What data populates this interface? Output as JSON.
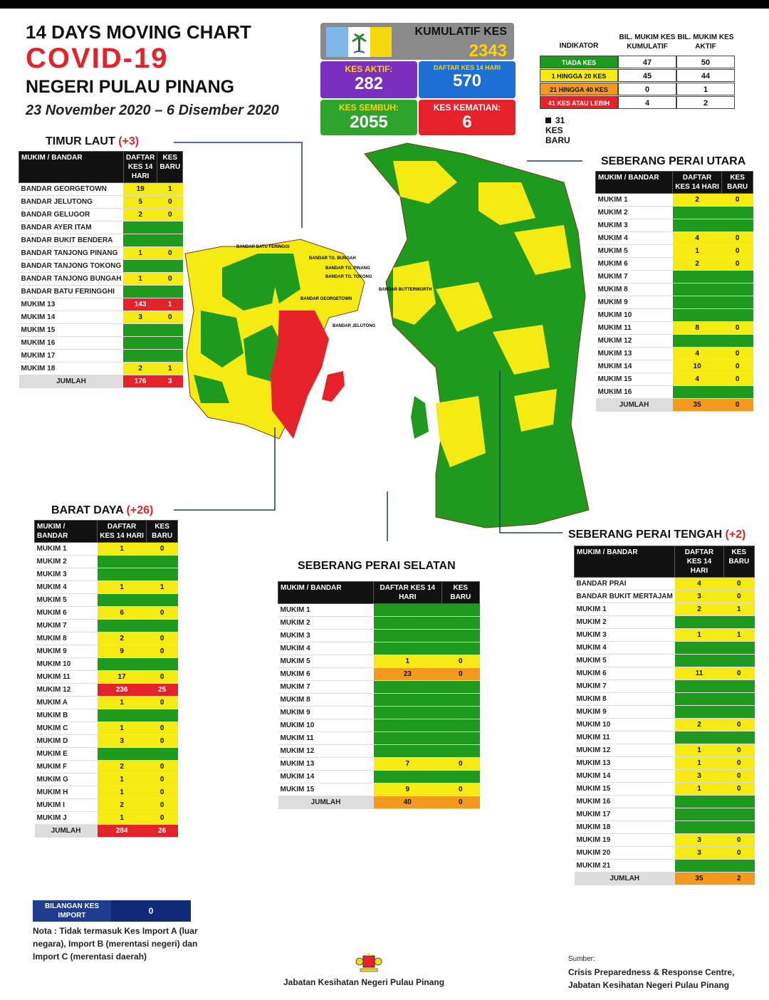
{
  "header": {
    "line1": "14  DAYS MOVING CHART",
    "line2": "COVID-19",
    "line3": "NEGERI PULAU PINANG",
    "line4": "23 November 2020 – 6 Disember 2020"
  },
  "summary": {
    "kumulatif_label": "KUMULATIF KES",
    "kumulatif_value": "2343",
    "aktif_label": "KES AKTIF:",
    "aktif_value": "282",
    "daftar_label": "DAFTAR KES 14 HARI",
    "daftar_value": "570",
    "sembuh_label": "KES SEMBUH:",
    "sembuh_value": "2055",
    "kematian_label": "KES KEMATIAN:",
    "kematian_value": "6",
    "colors": {
      "aktif": "#7b2fbf",
      "daftar": "#1d6fd6",
      "sembuh": "#2da52d",
      "kematian": "#e5222a",
      "kumulatif": "#8a8a8a"
    }
  },
  "indicator": {
    "h0": "INDIKATOR",
    "h1": "BIL. MUKIM KES KUMULATIF",
    "h2": "BIL. MUKIM KES AKTIF",
    "rows": [
      {
        "label": "TIADA KES",
        "kumulatif": "47",
        "aktif": "50",
        "color": "#1e9a1e"
      },
      {
        "label": "1 HINGGA 20 KES",
        "kumulatif": "45",
        "aktif": "44",
        "color": "#f6ea13"
      },
      {
        "label": "21 HINGGA 40 KES",
        "kumulatif": "0",
        "aktif": "1",
        "color": "#f39a1e"
      },
      {
        "label": "41 KES ATAU LEBIH",
        "kumulatif": "4",
        "aktif": "2",
        "color": "#e5222a"
      }
    ],
    "note": "31 KES BARU"
  },
  "timur_laut": {
    "title": "TIMUR LAUT",
    "plus": "(+3)",
    "h1": "MUKIM / BANDAR",
    "h2": "DAFTAR KES 14 HARI",
    "h3": "KES BARU",
    "rows": [
      [
        "BANDAR GEORGETOWN",
        "19",
        "1",
        "y"
      ],
      [
        "BANDAR JELUTONG",
        "5",
        "0",
        "y"
      ],
      [
        "BANDAR GELUGOR",
        "2",
        "0",
        "y"
      ],
      [
        "BANDAR AYER ITAM",
        "0",
        "0",
        "g"
      ],
      [
        "BANDAR BUKIT BENDERA",
        "0",
        "0",
        "g"
      ],
      [
        "BANDAR TANJONG PINANG",
        "1",
        "0",
        "y"
      ],
      [
        "BANDAR TANJONG TOKONG",
        "0",
        "0",
        "g"
      ],
      [
        "BANDAR TANJONG BUNGAH",
        "1",
        "0",
        "y"
      ],
      [
        "BANDAR BATU FERINGGHI",
        "0",
        "0",
        "g"
      ],
      [
        "MUKIM 13",
        "143",
        "1",
        "r"
      ],
      [
        "MUKIM 14",
        "3",
        "0",
        "y"
      ],
      [
        "MUKIM 15",
        "0",
        "0",
        "g"
      ],
      [
        "MUKIM 16",
        "0",
        "0",
        "g"
      ],
      [
        "MUKIM 17",
        "0",
        "0",
        "g"
      ],
      [
        "MUKIM 18",
        "2",
        "1",
        "y"
      ]
    ],
    "total": [
      "JUMLAH",
      "176",
      "3",
      "r"
    ]
  },
  "barat_daya": {
    "title": "BARAT DAYA",
    "plus": "(+26)",
    "h1": "MUKIM / BANDAR",
    "h2": "DAFTAR KES 14 HARI",
    "h3": "KES BARU",
    "rows": [
      [
        "MUKIM 1",
        "1",
        "0",
        "y"
      ],
      [
        "MUKIM 2",
        "0",
        "0",
        "g"
      ],
      [
        "MUKIM 3",
        "0",
        "0",
        "g"
      ],
      [
        "MUKIM 4",
        "1",
        "1",
        "y"
      ],
      [
        "MUKIM 5",
        "0",
        "0",
        "g"
      ],
      [
        "MUKIM 6",
        "6",
        "0",
        "y"
      ],
      [
        "MUKIM 7",
        "0",
        "0",
        "g"
      ],
      [
        "MUKIM 8",
        "2",
        "0",
        "y"
      ],
      [
        "MUKIM 9",
        "9",
        "0",
        "y"
      ],
      [
        "MUKIM 10",
        "0",
        "0",
        "g"
      ],
      [
        "MUKIM 11",
        "17",
        "0",
        "y"
      ],
      [
        "MUKIM 12",
        "236",
        "25",
        "r"
      ],
      [
        "MUKIM A",
        "1",
        "0",
        "y"
      ],
      [
        "MUKIM B",
        "0",
        "0",
        "g"
      ],
      [
        "MUKIM C",
        "1",
        "0",
        "y"
      ],
      [
        "MUKIM D",
        "3",
        "0",
        "y"
      ],
      [
        "MUKIM E",
        "0",
        "0",
        "g"
      ],
      [
        "MUKIM F",
        "2",
        "0",
        "y"
      ],
      [
        "MUKIM G",
        "1",
        "0",
        "y"
      ],
      [
        "MUKIM H",
        "1",
        "0",
        "y"
      ],
      [
        "MUKIM I",
        "2",
        "0",
        "y"
      ],
      [
        "MUKIM J",
        "1",
        "0",
        "y"
      ]
    ],
    "total": [
      "JUMLAH",
      "284",
      "26",
      "r"
    ]
  },
  "spu": {
    "title": "SEBERANG PERAI UTARA",
    "h1": "MUKIM / BANDAR",
    "h2": "DAFTAR KES 14 HARI",
    "h3": "KES BARU",
    "rows": [
      [
        "MUKIM 1",
        "2",
        "0",
        "y"
      ],
      [
        "MUKIM 2",
        "0",
        "0",
        "g"
      ],
      [
        "MUKIM 3",
        "0",
        "0",
        "g"
      ],
      [
        "MUKIM 4",
        "4",
        "0",
        "y"
      ],
      [
        "MUKIM 5",
        "1",
        "0",
        "y"
      ],
      [
        "MUKIM 6",
        "2",
        "0",
        "y"
      ],
      [
        "MUKIM 7",
        "0",
        "0",
        "g"
      ],
      [
        "MUKIM 8",
        "0",
        "0",
        "g"
      ],
      [
        "MUKIM 9",
        "0",
        "0",
        "g"
      ],
      [
        "MUKIM 10",
        "0",
        "0",
        "g"
      ],
      [
        "MUKIM 11",
        "8",
        "0",
        "y"
      ],
      [
        "MUKIM 12",
        "0",
        "0",
        "g"
      ],
      [
        "MUKIM 13",
        "4",
        "0",
        "y"
      ],
      [
        "MUKIM 14",
        "10",
        "0",
        "y"
      ],
      [
        "MUKIM 15",
        "4",
        "0",
        "y"
      ],
      [
        "MUKIM 16",
        "0",
        "0",
        "g"
      ]
    ],
    "total": [
      "JUMLAH",
      "35",
      "0",
      "o"
    ]
  },
  "sps": {
    "title": "SEBERANG PERAI SELATAN",
    "h1": "MUKIM / BANDAR",
    "h2": "DAFTAR KES 14 HARI",
    "h3": "KES BARU",
    "rows": [
      [
        "MUKIM 1",
        "0",
        "0",
        "g"
      ],
      [
        "MUKIM 2",
        "0",
        "0",
        "g"
      ],
      [
        "MUKIM 3",
        "0",
        "0",
        "g"
      ],
      [
        "MUKIM 4",
        "0",
        "0",
        "g"
      ],
      [
        "MUKIM 5",
        "1",
        "0",
        "y"
      ],
      [
        "MUKIM 6",
        "23",
        "0",
        "o"
      ],
      [
        "MUKIM 7",
        "0",
        "0",
        "g"
      ],
      [
        "MUKIM 8",
        "0",
        "0",
        "g"
      ],
      [
        "MUKIM 9",
        "0",
        "0",
        "g"
      ],
      [
        "MUKIM 10",
        "0",
        "0",
        "g"
      ],
      [
        "MUKIM 11",
        "0",
        "0",
        "g"
      ],
      [
        "MUKIM 12",
        "0",
        "0",
        "g"
      ],
      [
        "MUKIM 13",
        "7",
        "0",
        "y"
      ],
      [
        "MUKIM 14",
        "0",
        "0",
        "g"
      ],
      [
        "MUKIM 15",
        "9",
        "0",
        "y"
      ]
    ],
    "total": [
      "JUMLAH",
      "40",
      "0",
      "o"
    ]
  },
  "spt": {
    "title": "SEBERANG PERAI TENGAH",
    "plus": "(+2)",
    "h1": "MUKIM / BANDAR",
    "h2": "DAFTAR KES 14 HARI",
    "h3": "KES BARU",
    "rows": [
      [
        "BANDAR PRAI",
        "4",
        "0",
        "y"
      ],
      [
        "BANDAR BUKIT MERTAJAM",
        "3",
        "0",
        "y"
      ],
      [
        "MUKIM 1",
        "2",
        "1",
        "y"
      ],
      [
        "MUKIM 2",
        "0",
        "0",
        "g"
      ],
      [
        "MUKIM 3",
        "1",
        "1",
        "y"
      ],
      [
        "MUKIM 4",
        "0",
        "0",
        "g"
      ],
      [
        "MUKIM 5",
        "0",
        "0",
        "g"
      ],
      [
        "MUKIM 6",
        "11",
        "0",
        "y"
      ],
      [
        "MUKIM 7",
        "0",
        "0",
        "g"
      ],
      [
        "MUKIM 8",
        "0",
        "0",
        "g"
      ],
      [
        "MUKIM 9",
        "0",
        "0",
        "g"
      ],
      [
        "MUKIM 10",
        "2",
        "0",
        "y"
      ],
      [
        "MUKIM 11",
        "0",
        "0",
        "g"
      ],
      [
        "MUKIM 12",
        "1",
        "0",
        "y"
      ],
      [
        "MUKIM 13",
        "1",
        "0",
        "y"
      ],
      [
        "MUKIM 14",
        "3",
        "0",
        "y"
      ],
      [
        "MUKIM 15",
        "1",
        "0",
        "y"
      ],
      [
        "MUKIM 16",
        "0",
        "0",
        "g"
      ],
      [
        "MUKIM 17",
        "0",
        "0",
        "g"
      ],
      [
        "MUKIM 18",
        "0",
        "0",
        "g"
      ],
      [
        "MUKIM 19",
        "3",
        "0",
        "y"
      ],
      [
        "MUKIM 20",
        "3",
        "0",
        "y"
      ],
      [
        "MUKIM 21",
        "0",
        "0",
        "g"
      ]
    ],
    "total": [
      "JUMLAH",
      "35",
      "2",
      "o"
    ]
  },
  "map_labels": {
    "batu_feringgi": "BANDAR BATU FERINGGI",
    "tg_bungah": "BANDAR TG. BUNGAH",
    "tg_pinang": "BANDAR TG. PINANG",
    "tg_tokong": "BANDAR TG. TOKONG",
    "georgetown": "BANDAR GEORGETOWN",
    "jelutong": "BANDAR JELUTONG",
    "butterworth": "BANDAR BUTTERWORTH"
  },
  "import": {
    "label": "BILANGAN KES IMPORT",
    "value": "0"
  },
  "nota": "Nota : Tidak termasuk Kes Import A (luar negara), Import B (merentasi negeri) dan Import C (merentasi daerah)",
  "footer": "Jabatan Kesihatan Negeri Pulau Pinang",
  "sumber": {
    "label": "Sumber:",
    "line1": "Crisis Preparedness & Response Centre,",
    "line2": "Jabatan Kesihatan Negeri Pulau Pinang"
  }
}
